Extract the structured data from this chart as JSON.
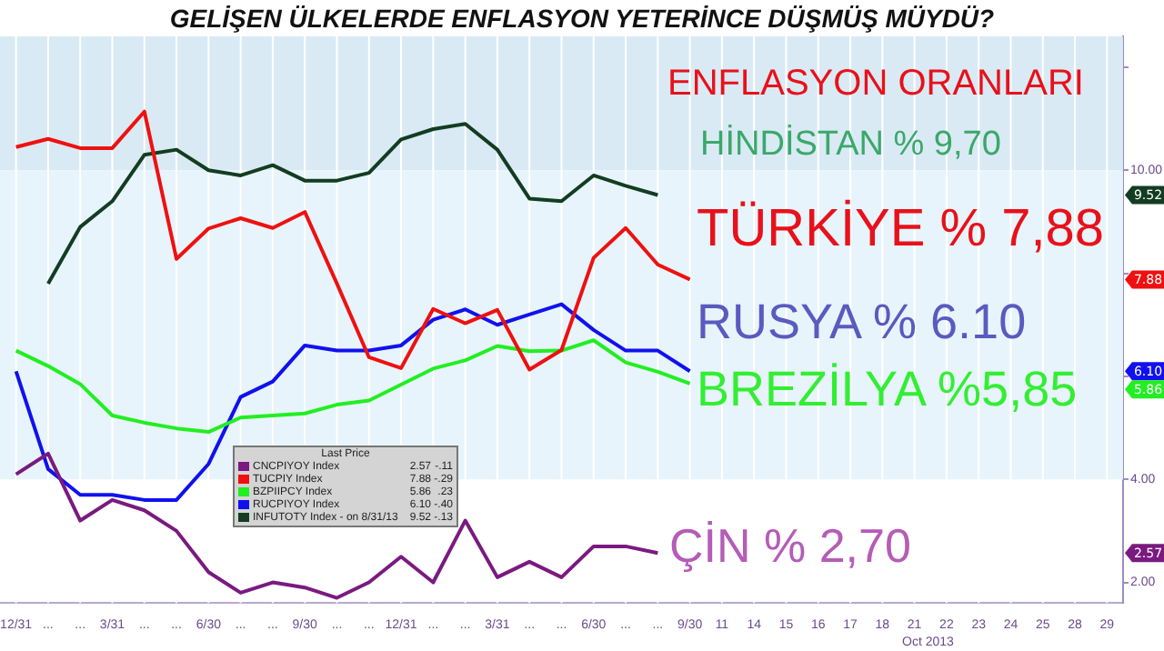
{
  "chart_data": {
    "type": "line",
    "title": "GELİŞEN ÜLKELERDE ENFLASYON YETERİNCE DÜŞMÜŞ MÜYDÜ?",
    "subtitle": "ENFLASYON ORANLARI",
    "legend_title": "Last Price",
    "categories": [
      "12/31",
      "...",
      "...",
      "3/31",
      "...",
      "...",
      "6/30",
      "...",
      "...",
      "9/30",
      "...",
      "...",
      "12/31",
      "...",
      "...",
      "3/31",
      "...",
      "...",
      "6/30",
      "...",
      "...",
      "9/30",
      "11",
      "14",
      "15",
      "16",
      "17",
      "18",
      "21",
      "22",
      "23",
      "24",
      "25",
      "28",
      "29"
    ],
    "series": [
      {
        "name": "CNCPIYOY Index",
        "color": "#7a1a80",
        "values": [
          4.1,
          4.5,
          3.2,
          3.6,
          3.4,
          3.0,
          2.2,
          1.8,
          2.0,
          1.9,
          1.7,
          2.0,
          2.5,
          2.0,
          3.2,
          2.1,
          2.4,
          2.1,
          2.7,
          2.7,
          2.57,
          null,
          null,
          null,
          null,
          null,
          null,
          null,
          null,
          null,
          null,
          null,
          null,
          null,
          null
        ]
      },
      {
        "name": "TUCPIY Index",
        "color": "#ee1111",
        "values": [
          10.45,
          10.61,
          10.43,
          10.43,
          11.14,
          8.28,
          8.87,
          9.07,
          8.88,
          9.19,
          7.8,
          6.37,
          6.16,
          7.31,
          7.03,
          7.29,
          6.13,
          6.51,
          8.3,
          8.88,
          8.17,
          7.88,
          null,
          null,
          null,
          null,
          null,
          null,
          null,
          null,
          null,
          null,
          null,
          null,
          null
        ]
      },
      {
        "name": "BZPIIPCY Index",
        "color": "#22ee22",
        "values": [
          6.5,
          6.2,
          5.85,
          5.24,
          5.1,
          4.99,
          4.92,
          5.2,
          5.24,
          5.28,
          5.45,
          5.53,
          5.84,
          6.15,
          6.31,
          6.59,
          6.49,
          6.5,
          6.7,
          6.27,
          6.09,
          5.86,
          null,
          null,
          null,
          null,
          null,
          null,
          null,
          null,
          null,
          null,
          null,
          null,
          null
        ]
      },
      {
        "name": "RUCPIYOY Index",
        "color": "#1111ee",
        "values": [
          6.1,
          4.2,
          3.7,
          3.7,
          3.6,
          3.6,
          4.3,
          5.6,
          5.9,
          6.6,
          6.5,
          6.5,
          6.6,
          7.1,
          7.3,
          7.0,
          7.2,
          7.4,
          6.9,
          6.5,
          6.5,
          6.1,
          null,
          null,
          null,
          null,
          null,
          null,
          null,
          null,
          null,
          null,
          null,
          null,
          null
        ]
      },
      {
        "name": "INFUTOTY Index - on 8/31/13",
        "color": "#133d22",
        "values": [
          null,
          7.8,
          8.9,
          9.4,
          10.3,
          10.4,
          10.0,
          9.9,
          10.1,
          9.8,
          9.8,
          9.95,
          10.6,
          10.8,
          10.9,
          10.4,
          9.45,
          9.4,
          9.9,
          9.7,
          9.52,
          null,
          null,
          null,
          null,
          null,
          null,
          null,
          null,
          null,
          null,
          null,
          null,
          null,
          null
        ]
      }
    ],
    "annotations": [
      "ÇİN % 2,70",
      "TÜRKİYE % 7,88",
      "BREZİLYA %5,85",
      "RUSYA % 6.10",
      "HİNDİSTAN % 9,70",
      "-.11",
      "-.29",
      ".23",
      "-.40",
      "-.13",
      "Oct 2013",
      "2.57",
      "7.88",
      "5.86",
      "6.10",
      "9.52"
    ],
    "ylim": [
      1.6,
      12.6
    ],
    "yticks": [
      {
        "value": 2,
        "label": "2.00"
      },
      {
        "value": 4,
        "label": "4.00"
      },
      {
        "value": 6,
        "label": null
      },
      {
        "value": 8,
        "label": null
      },
      {
        "value": 10,
        "label": "10.00"
      },
      {
        "value": 12,
        "label": null
      }
    ],
    "bands": [
      {
        "axis": "y",
        "from": 10,
        "to": 12.6,
        "color": "#d9eaf4"
      },
      {
        "axis": "y",
        "from": 4,
        "to": 10,
        "color": "#e7f4fb"
      }
    ],
    "grid": "x",
    "legend": "bottom left",
    "marker": "none",
    "line_style": "solid"
  }
}
